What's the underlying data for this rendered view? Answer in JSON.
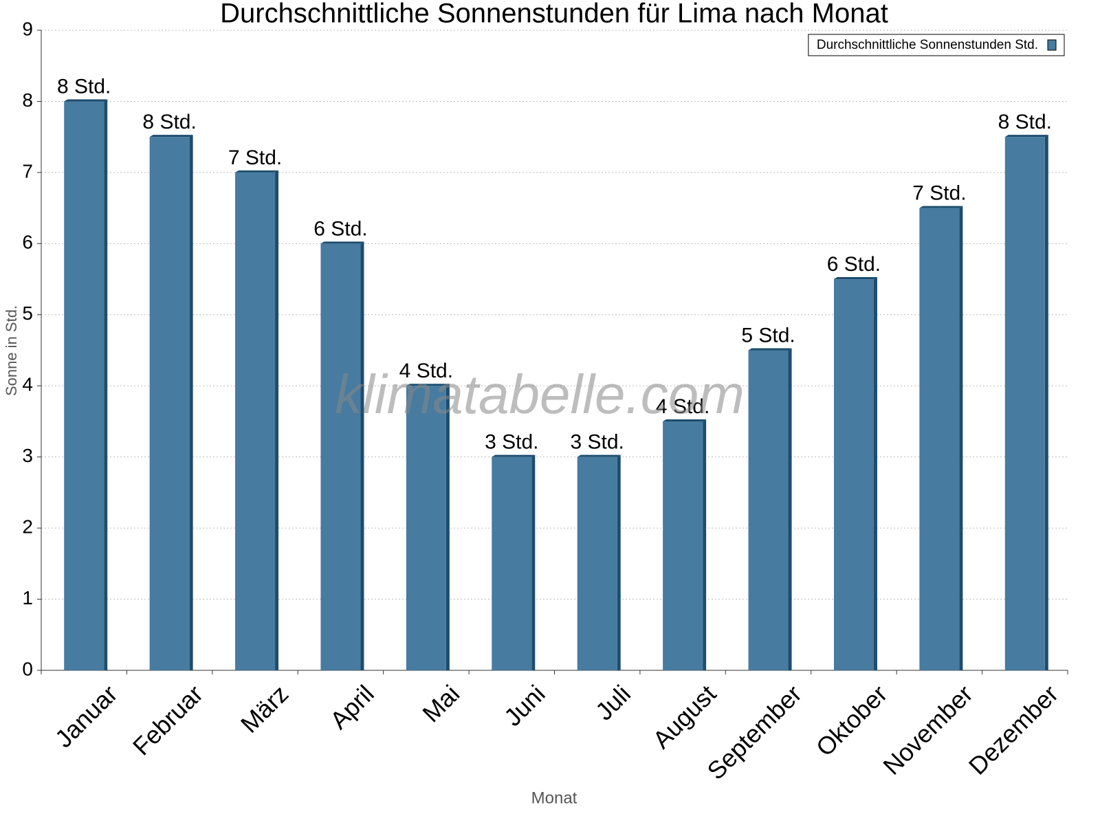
{
  "chart_data": {
    "type": "bar",
    "title": "Durchschnittliche Sonnenstunden für Lima nach Monat",
    "x_label": "Monat",
    "y_label": "Sonne in Std.",
    "watermark": "klimatabelle.com",
    "categories": [
      "Januar",
      "Februar",
      "März",
      "April",
      "Mai",
      "Juni",
      "Juli",
      "August",
      "September",
      "Oktober",
      "November",
      "Dezember"
    ],
    "series": [
      {
        "name": "Durchschnittliche Sonnenstunden Std.",
        "color": "#477ba0",
        "values": [
          8,
          7.5,
          7,
          6,
          4,
          3,
          3,
          3.5,
          4.5,
          5.5,
          6.5,
          7.5
        ],
        "value_labels": [
          "8 Std.",
          "8 Std.",
          "7 Std.",
          "6 Std.",
          "4 Std.",
          "3 Std.",
          "3 Std.",
          "4 Std.",
          "5 Std.",
          "6 Std.",
          "7 Std.",
          "8 Std."
        ]
      }
    ],
    "ylim": [
      0,
      9
    ],
    "yticks": [
      0,
      1,
      2,
      3,
      4,
      5,
      6,
      7,
      8,
      9
    ],
    "grid": true,
    "legend": "upper right"
  }
}
